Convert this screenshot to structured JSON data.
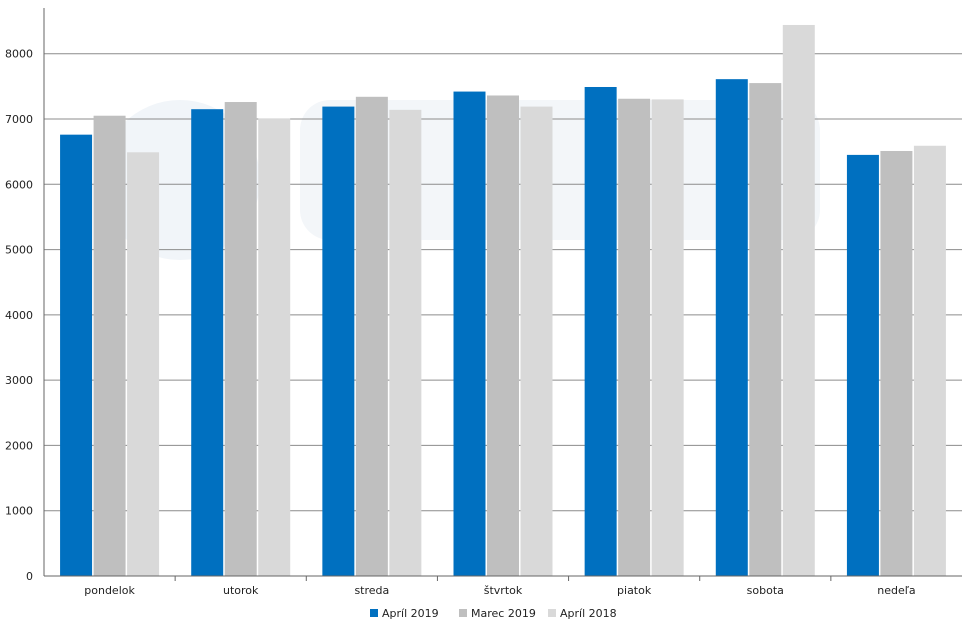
{
  "chart_data": {
    "type": "bar",
    "title": "",
    "xlabel": "",
    "ylabel": "",
    "categories": [
      "pondelok",
      "utorok",
      "streda",
      "štvrtok",
      "piatok",
      "sobota",
      "nedeľa"
    ],
    "series": [
      {
        "name": "Apríl 2019",
        "color": "#0070c0",
        "values": [
          6760,
          7150,
          7190,
          7420,
          7490,
          7610,
          6450
        ]
      },
      {
        "name": "Marec 2019",
        "color": "#bfbfbf",
        "values": [
          7050,
          7260,
          7340,
          7360,
          7310,
          7550,
          6510
        ]
      },
      {
        "name": "Apríl 2018",
        "color": "#d9d9d9",
        "values": [
          6490,
          7010,
          7140,
          7190,
          7300,
          8440,
          6590
        ]
      }
    ],
    "ylim": [
      0,
      8700
    ],
    "yticks": [
      0,
      1000,
      2000,
      3000,
      4000,
      5000,
      6000,
      7000,
      8000
    ],
    "grid": true,
    "legend_position": "bottom"
  }
}
